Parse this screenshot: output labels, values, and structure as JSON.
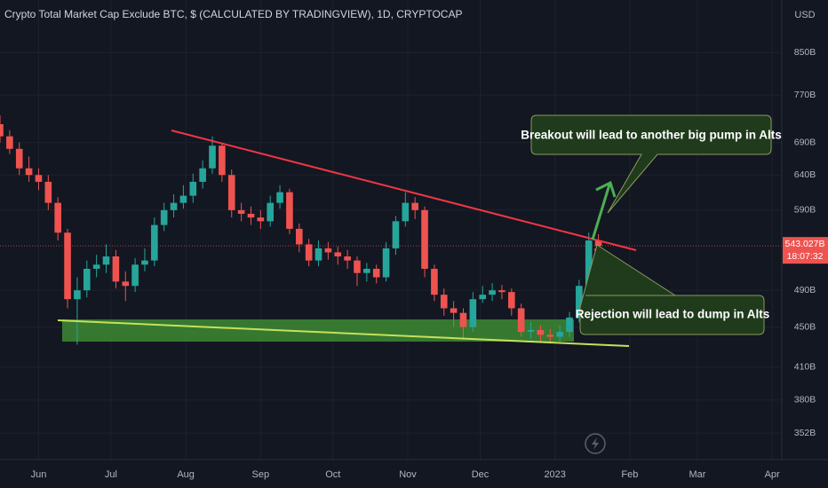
{
  "chart_data": {
    "type": "candlestick",
    "title": "Crypto Total Market Cap Exclude BTC, $ (CALCULATED BY TRADINGVIEW), 1D, CRYPTOCAP",
    "currency": "USD",
    "log_scale": true,
    "up_color": "#26a69a",
    "down_color": "#ef5350",
    "xlim": [
      -16,
      308
    ],
    "xticks": [
      {
        "value": 0,
        "label": "Jun"
      },
      {
        "value": 30,
        "label": "Jul"
      },
      {
        "value": 61,
        "label": "Aug"
      },
      {
        "value": 92,
        "label": "Sep"
      },
      {
        "value": 122,
        "label": "Oct"
      },
      {
        "value": 153,
        "label": "Nov"
      },
      {
        "value": 183,
        "label": "Dec"
      },
      {
        "value": 214,
        "label": "2023"
      },
      {
        "value": 245,
        "label": "Feb"
      },
      {
        "value": 273,
        "label": "Mar"
      },
      {
        "value": 304,
        "label": "Apr"
      }
    ],
    "ylim": [
      331,
      960
    ],
    "yticks": [
      {
        "value": 352,
        "label": "352B"
      },
      {
        "value": 380,
        "label": "380B"
      },
      {
        "value": 410,
        "label": "410B"
      },
      {
        "value": 450,
        "label": "450B"
      },
      {
        "value": 490,
        "label": "490B"
      },
      {
        "value": 590,
        "label": "590B"
      },
      {
        "value": 640,
        "label": "640B"
      },
      {
        "value": 690,
        "label": "690B"
      },
      {
        "value": 770,
        "label": "770B"
      },
      {
        "value": 850,
        "label": "850B"
      }
    ],
    "last_price": {
      "value": 543.027,
      "label": "543.027B",
      "countdown": "18:07:32"
    },
    "x": [
      -16,
      -12,
      -8,
      -4,
      0,
      4,
      8,
      12,
      16,
      20,
      24,
      28,
      32,
      36,
      40,
      44,
      48,
      52,
      56,
      60,
      64,
      68,
      72,
      76,
      80,
      84,
      88,
      92,
      96,
      100,
      104,
      108,
      112,
      116,
      120,
      124,
      128,
      132,
      136,
      140,
      144,
      148,
      152,
      156,
      160,
      164,
      168,
      172,
      176,
      180,
      184,
      188,
      192,
      196,
      200,
      204,
      208,
      212,
      216,
      220,
      224,
      228,
      232
    ],
    "open": [
      720,
      700,
      680,
      650,
      640,
      630,
      600,
      560,
      480,
      490,
      515,
      520,
      530,
      500,
      495,
      520,
      525,
      570,
      590,
      600,
      610,
      630,
      650,
      685,
      640,
      590,
      585,
      580,
      575,
      600,
      615,
      565,
      545,
      525,
      540,
      535,
      530,
      525,
      510,
      515,
      505,
      540,
      575,
      600,
      590,
      515,
      485,
      470,
      465,
      450,
      480,
      485,
      490,
      488,
      470,
      445,
      447,
      442,
      440,
      445,
      460,
      495,
      550
    ],
    "high": [
      735,
      710,
      690,
      668,
      650,
      640,
      608,
      565,
      505,
      525,
      532,
      545,
      538,
      512,
      528,
      540,
      580,
      600,
      612,
      625,
      642,
      662,
      700,
      690,
      648,
      600,
      595,
      590,
      610,
      625,
      620,
      572,
      552,
      550,
      548,
      542,
      538,
      530,
      522,
      520,
      548,
      582,
      615,
      608,
      595,
      520,
      492,
      478,
      470,
      488,
      495,
      498,
      496,
      492,
      475,
      455,
      452,
      448,
      452,
      466,
      502,
      560,
      558
    ],
    "low": [
      690,
      672,
      640,
      630,
      618,
      590,
      550,
      470,
      432,
      482,
      505,
      510,
      492,
      478,
      488,
      512,
      518,
      562,
      580,
      592,
      600,
      620,
      642,
      630,
      580,
      575,
      570,
      565,
      568,
      592,
      558,
      535,
      518,
      518,
      526,
      520,
      515,
      495,
      500,
      498,
      500,
      532,
      568,
      578,
      505,
      478,
      462,
      450,
      438,
      445,
      476,
      478,
      480,
      462,
      440,
      438,
      435,
      433,
      435,
      440,
      455,
      490,
      535
    ],
    "close": [
      700,
      680,
      650,
      640,
      630,
      600,
      560,
      480,
      490,
      515,
      520,
      530,
      500,
      495,
      520,
      525,
      570,
      590,
      600,
      610,
      630,
      650,
      685,
      640,
      590,
      585,
      580,
      575,
      600,
      615,
      565,
      545,
      525,
      540,
      535,
      530,
      525,
      510,
      515,
      505,
      540,
      575,
      600,
      590,
      515,
      485,
      470,
      465,
      450,
      480,
      485,
      490,
      488,
      470,
      445,
      447,
      442,
      440,
      445,
      460,
      495,
      550,
      543
    ],
    "annotations": [
      "Breakout will lead to another big pump in Alts",
      "Rejection will lead to dump in Alts"
    ]
  }
}
